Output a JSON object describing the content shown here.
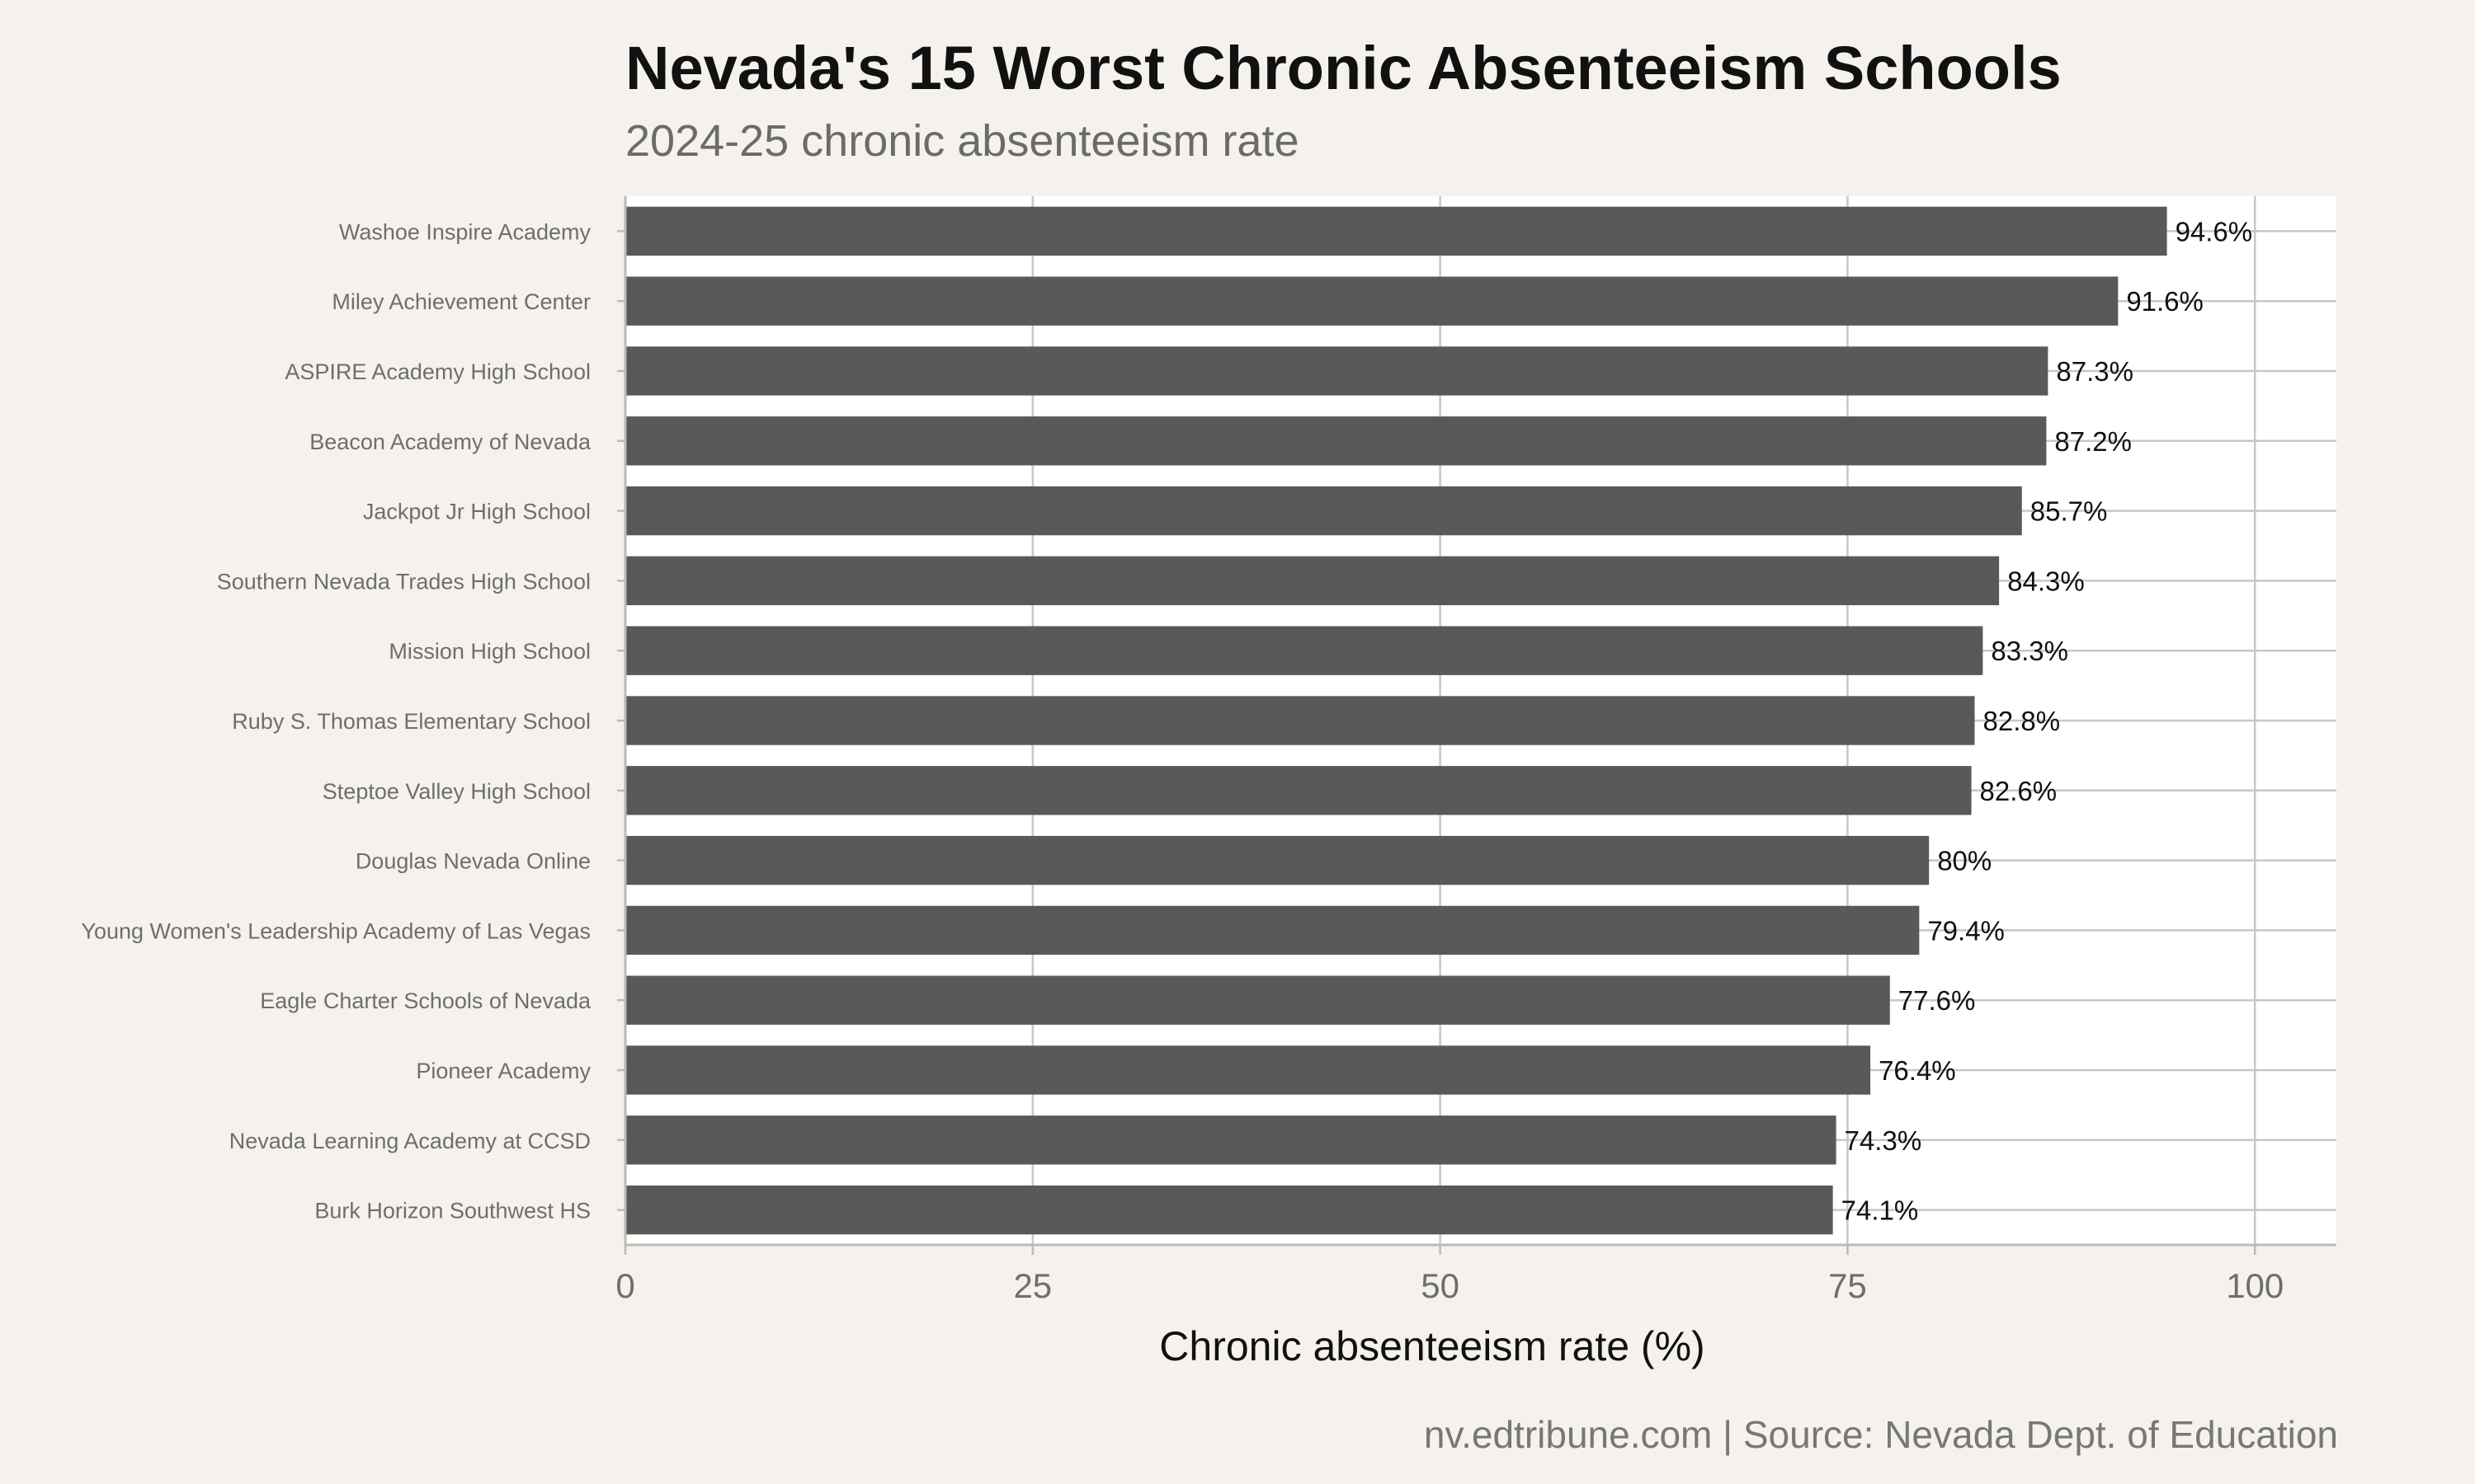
{
  "chart_data": {
    "type": "bar",
    "orientation": "horizontal",
    "title": "Nevada's 15 Worst Chronic Absenteeism Schools",
    "subtitle": "2024-25 chronic absenteeism rate",
    "caption": "nv.edtribune.com | Source: Nevada Dept. of Education",
    "xlabel": "Chronic absenteeism rate (%)",
    "ylabel": "",
    "xlim": [
      0,
      105
    ],
    "xticks": [
      0,
      25,
      50,
      75,
      100
    ],
    "grid": true,
    "legend": "none",
    "bar_color": "#595959",
    "categories": [
      "Washoe Inspire Academy",
      "Miley Achievement Center",
      "ASPIRE Academy High School",
      "Beacon Academy of Nevada",
      "Jackpot Jr High School",
      "Southern Nevada Trades High School",
      "Mission High School",
      "Ruby S. Thomas Elementary School",
      "Steptoe Valley High School",
      "Douglas Nevada Online",
      "Young Women's Leadership Academy of Las Vegas",
      "Eagle Charter Schools of Nevada",
      "Pioneer Academy",
      "Nevada Learning Academy at CCSD",
      "Burk Horizon Southwest HS"
    ],
    "values": [
      94.6,
      91.6,
      87.3,
      87.2,
      85.7,
      84.3,
      83.3,
      82.8,
      82.6,
      80,
      79.4,
      77.6,
      76.4,
      74.3,
      74.1
    ],
    "value_labels": [
      "94.6%",
      "91.6%",
      "87.3%",
      "87.2%",
      "85.7%",
      "84.3%",
      "83.3%",
      "82.8%",
      "82.6%",
      "80%",
      "79.4%",
      "77.6%",
      "76.4%",
      "74.3%",
      "74.1%"
    ]
  }
}
